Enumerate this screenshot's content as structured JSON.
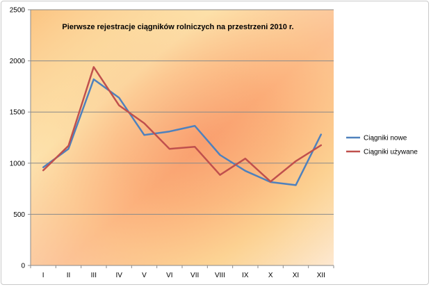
{
  "chart_data": {
    "type": "line",
    "title": "Pierwsze rejestracje ciągników rolniczych na przestrzeni 2010 r.",
    "categories": [
      "I",
      "II",
      "III",
      "IV",
      "V",
      "VI",
      "VII",
      "VIII",
      "IX",
      "X",
      "XI",
      "XII"
    ],
    "ylim": [
      0,
      2500
    ],
    "yticks": [
      "0",
      "500",
      "1000",
      "1500",
      "2000",
      "2500"
    ],
    "grid": true,
    "legend_position": "right",
    "series": [
      {
        "name": "Ciągniki nowe",
        "color": "#4f81bd",
        "values": [
          960,
          1140,
          1820,
          1640,
          1275,
          1310,
          1365,
          1080,
          925,
          815,
          785,
          1280
        ]
      },
      {
        "name": "Ciągniki używane",
        "color": "#c0504d",
        "values": [
          930,
          1170,
          1940,
          1565,
          1390,
          1140,
          1160,
          885,
          1045,
          820,
          1020,
          1175
        ]
      }
    ]
  }
}
